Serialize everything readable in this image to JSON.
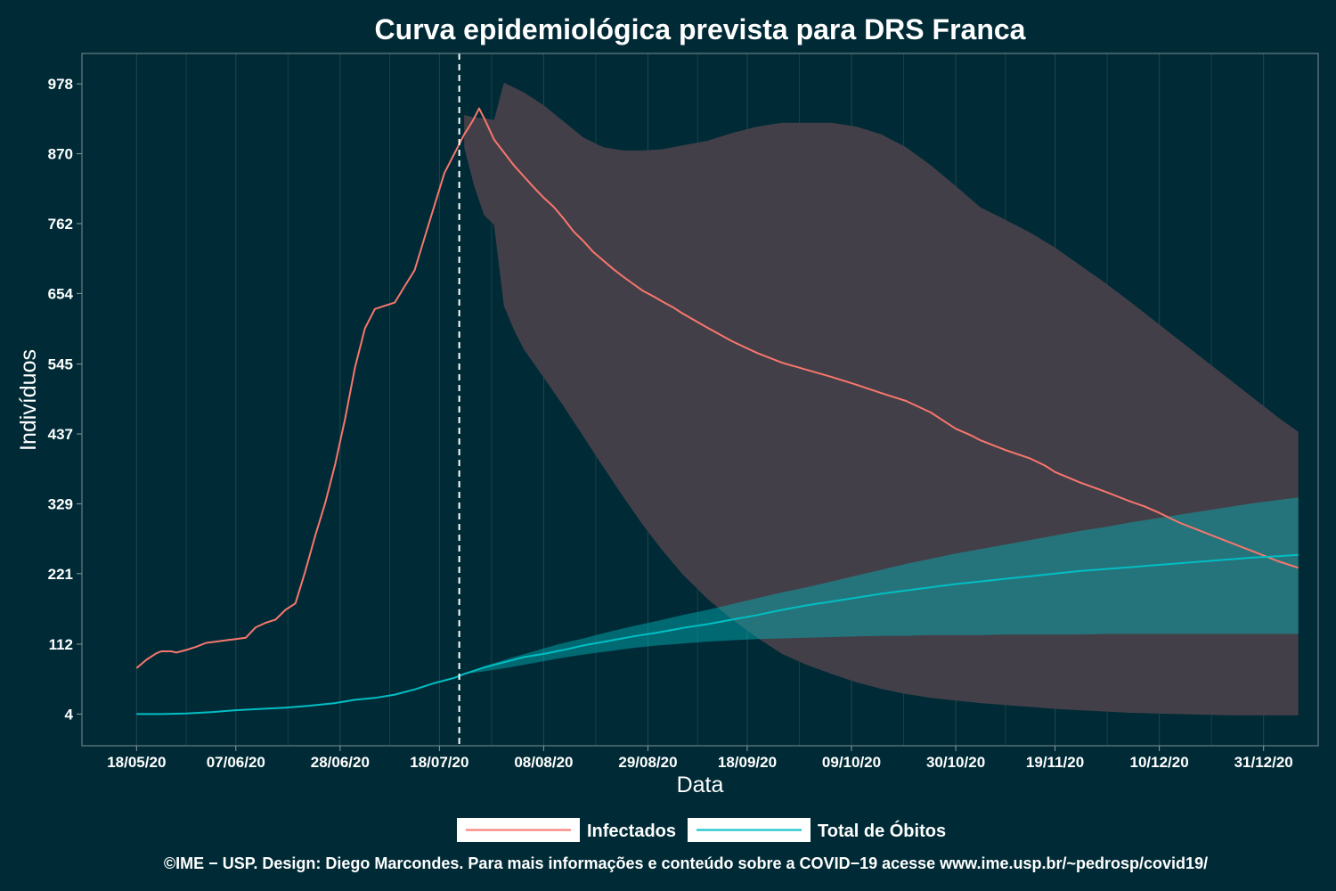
{
  "chart_data": {
    "type": "line",
    "title": "Curva epidemiológica prevista para DRS Franca",
    "xlabel": "Data",
    "ylabel": "Indivíduos",
    "x_tick_labels": [
      "18/05/20",
      "07/06/20",
      "28/06/20",
      "18/07/20",
      "08/08/20",
      "29/08/20",
      "18/09/20",
      "09/10/20",
      "30/10/20",
      "19/11/20",
      "10/12/20",
      "31/12/20"
    ],
    "x_tick_days": [
      0,
      20,
      41,
      61,
      82,
      103,
      123,
      144,
      165,
      185,
      206,
      227
    ],
    "y_ticks": [
      4,
      112,
      221,
      329,
      437,
      545,
      654,
      762,
      870,
      978
    ],
    "ylim": [
      -45,
      1025
    ],
    "xlim": [
      -11,
      238
    ],
    "forecast_start_day": 65,
    "grid": true,
    "legend_position": "bottom",
    "series": [
      {
        "name": "Infectados",
        "color": "#f8766d",
        "points": [
          [
            0,
            75
          ],
          [
            2,
            88
          ],
          [
            4,
            98
          ],
          [
            5,
            101
          ],
          [
            7,
            101
          ],
          [
            8,
            99
          ],
          [
            10,
            103
          ],
          [
            12,
            108
          ],
          [
            14,
            114
          ],
          [
            16,
            116
          ],
          [
            18,
            118
          ],
          [
            20,
            120
          ],
          [
            22,
            122
          ],
          [
            24,
            138
          ],
          [
            26,
            145
          ],
          [
            28,
            150
          ],
          [
            30,
            165
          ],
          [
            32,
            175
          ],
          [
            34,
            225
          ],
          [
            36,
            280
          ],
          [
            38,
            330
          ],
          [
            40,
            390
          ],
          [
            42,
            460
          ],
          [
            44,
            540
          ],
          [
            46,
            600
          ],
          [
            48,
            630
          ],
          [
            50,
            635
          ],
          [
            52,
            640
          ],
          [
            54,
            665
          ],
          [
            56,
            690
          ],
          [
            58,
            740
          ],
          [
            60,
            790
          ],
          [
            62,
            840
          ],
          [
            64,
            870
          ],
          [
            66,
            900
          ],
          [
            67,
            912
          ],
          [
            68,
            925
          ],
          [
            69,
            940
          ],
          [
            70,
            925
          ],
          [
            72,
            892
          ],
          [
            74,
            872
          ],
          [
            76,
            852
          ],
          [
            78,
            835
          ],
          [
            80,
            818
          ],
          [
            82,
            802
          ],
          [
            84,
            788
          ],
          [
            86,
            770
          ],
          [
            88,
            750
          ],
          [
            90,
            735
          ],
          [
            92,
            718
          ],
          [
            94,
            705
          ],
          [
            96,
            692
          ],
          [
            98,
            680
          ],
          [
            100,
            669
          ],
          [
            102,
            658
          ],
          [
            104,
            650
          ],
          [
            106,
            641
          ],
          [
            108,
            633
          ],
          [
            110,
            623
          ],
          [
            115,
            601
          ],
          [
            120,
            580
          ],
          [
            125,
            562
          ],
          [
            130,
            547
          ],
          [
            135,
            536
          ],
          [
            140,
            525
          ],
          [
            145,
            513
          ],
          [
            150,
            500
          ],
          [
            155,
            488
          ],
          [
            160,
            470
          ],
          [
            163,
            455
          ],
          [
            165,
            445
          ],
          [
            168,
            435
          ],
          [
            170,
            427
          ],
          [
            175,
            412
          ],
          [
            180,
            399
          ],
          [
            183,
            388
          ],
          [
            185,
            378
          ],
          [
            190,
            362
          ],
          [
            195,
            348
          ],
          [
            200,
            333
          ],
          [
            203,
            325
          ],
          [
            206,
            315
          ],
          [
            210,
            300
          ],
          [
            215,
            285
          ],
          [
            220,
            270
          ],
          [
            225,
            255
          ],
          [
            230,
            240
          ],
          [
            234,
            230
          ]
        ]
      },
      {
        "name": "Total de Óbitos",
        "color": "#00bfc4",
        "points": [
          [
            0,
            4
          ],
          [
            5,
            4
          ],
          [
            10,
            5
          ],
          [
            15,
            7
          ],
          [
            20,
            10
          ],
          [
            25,
            12
          ],
          [
            30,
            14
          ],
          [
            35,
            17
          ],
          [
            40,
            21
          ],
          [
            44,
            26
          ],
          [
            48,
            29
          ],
          [
            52,
            34
          ],
          [
            56,
            42
          ],
          [
            60,
            52
          ],
          [
            64,
            60
          ],
          [
            66,
            66
          ],
          [
            70,
            76
          ],
          [
            74,
            84
          ],
          [
            78,
            92
          ],
          [
            82,
            97
          ],
          [
            86,
            103
          ],
          [
            90,
            110
          ],
          [
            95,
            117
          ],
          [
            100,
            124
          ],
          [
            105,
            130
          ],
          [
            110,
            137
          ],
          [
            115,
            143
          ],
          [
            120,
            150
          ],
          [
            125,
            157
          ],
          [
            130,
            165
          ],
          [
            135,
            172
          ],
          [
            140,
            178
          ],
          [
            145,
            184
          ],
          [
            150,
            190
          ],
          [
            155,
            195
          ],
          [
            160,
            200
          ],
          [
            165,
            205
          ],
          [
            170,
            209
          ],
          [
            175,
            213
          ],
          [
            180,
            217
          ],
          [
            185,
            221
          ],
          [
            190,
            225
          ],
          [
            195,
            228
          ],
          [
            200,
            231
          ],
          [
            205,
            234
          ],
          [
            210,
            237
          ],
          [
            215,
            240
          ],
          [
            220,
            243
          ],
          [
            225,
            246
          ],
          [
            230,
            248
          ],
          [
            234,
            250
          ]
        ]
      }
    ],
    "bands": [
      {
        "name": "Infectados",
        "fill": "#433f48",
        "upper": [
          [
            66,
            930
          ],
          [
            68,
            926
          ],
          [
            70,
            925
          ],
          [
            72,
            922
          ],
          [
            74,
            980
          ],
          [
            78,
            965
          ],
          [
            82,
            945
          ],
          [
            86,
            920
          ],
          [
            90,
            895
          ],
          [
            94,
            880
          ],
          [
            98,
            875
          ],
          [
            102,
            875
          ],
          [
            106,
            877
          ],
          [
            110,
            883
          ],
          [
            115,
            890
          ],
          [
            120,
            902
          ],
          [
            125,
            912
          ],
          [
            130,
            918
          ],
          [
            135,
            918
          ],
          [
            140,
            918
          ],
          [
            145,
            912
          ],
          [
            150,
            900
          ],
          [
            155,
            880
          ],
          [
            160,
            852
          ],
          [
            165,
            820
          ],
          [
            170,
            787
          ],
          [
            175,
            768
          ],
          [
            180,
            748
          ],
          [
            185,
            725
          ],
          [
            190,
            698
          ],
          [
            195,
            671
          ],
          [
            200,
            642
          ],
          [
            205,
            612
          ],
          [
            210,
            582
          ],
          [
            215,
            552
          ],
          [
            220,
            522
          ],
          [
            225,
            492
          ],
          [
            230,
            462
          ],
          [
            234,
            440
          ]
        ],
        "lower": [
          [
            66,
            880
          ],
          [
            68,
            820
          ],
          [
            70,
            775
          ],
          [
            72,
            760
          ],
          [
            74,
            635
          ],
          [
            76,
            598
          ],
          [
            78,
            568
          ],
          [
            82,
            524
          ],
          [
            86,
            480
          ],
          [
            90,
            433
          ],
          [
            94,
            386
          ],
          [
            98,
            340
          ],
          [
            102,
            296
          ],
          [
            106,
            256
          ],
          [
            110,
            220
          ],
          [
            115,
            182
          ],
          [
            120,
            150
          ],
          [
            125,
            122
          ],
          [
            130,
            97
          ],
          [
            135,
            80
          ],
          [
            140,
            66
          ],
          [
            145,
            53
          ],
          [
            150,
            43
          ],
          [
            155,
            35
          ],
          [
            160,
            29
          ],
          [
            165,
            25
          ],
          [
            170,
            21
          ],
          [
            175,
            18
          ],
          [
            180,
            15
          ],
          [
            185,
            12
          ],
          [
            190,
            10
          ],
          [
            195,
            8
          ],
          [
            200,
            6
          ],
          [
            205,
            5
          ],
          [
            210,
            4
          ],
          [
            215,
            3
          ],
          [
            220,
            2
          ],
          [
            225,
            2
          ],
          [
            230,
            2
          ],
          [
            234,
            2
          ]
        ]
      },
      {
        "name": "Total de Óbitos",
        "fill": "#00bfc4",
        "upper": [
          [
            66,
            66
          ],
          [
            70,
            78
          ],
          [
            75,
            90
          ],
          [
            80,
            101
          ],
          [
            85,
            112
          ],
          [
            90,
            121
          ],
          [
            95,
            131
          ],
          [
            100,
            140
          ],
          [
            105,
            148
          ],
          [
            110,
            157
          ],
          [
            115,
            165
          ],
          [
            120,
            174
          ],
          [
            125,
            183
          ],
          [
            130,
            192
          ],
          [
            135,
            200
          ],
          [
            140,
            209
          ],
          [
            145,
            218
          ],
          [
            150,
            227
          ],
          [
            155,
            236
          ],
          [
            160,
            244
          ],
          [
            165,
            252
          ],
          [
            170,
            259
          ],
          [
            175,
            266
          ],
          [
            180,
            273
          ],
          [
            185,
            280
          ],
          [
            190,
            287
          ],
          [
            195,
            293
          ],
          [
            200,
            300
          ],
          [
            205,
            306
          ],
          [
            210,
            312
          ],
          [
            215,
            318
          ],
          [
            220,
            324
          ],
          [
            225,
            330
          ],
          [
            230,
            335
          ],
          [
            234,
            339
          ]
        ],
        "lower": [
          [
            66,
            66
          ],
          [
            70,
            70
          ],
          [
            75,
            76
          ],
          [
            80,
            83
          ],
          [
            85,
            90
          ],
          [
            90,
            96
          ],
          [
            95,
            101
          ],
          [
            100,
            106
          ],
          [
            105,
            110
          ],
          [
            110,
            113
          ],
          [
            115,
            116
          ],
          [
            120,
            118
          ],
          [
            125,
            120
          ],
          [
            130,
            121
          ],
          [
            135,
            122
          ],
          [
            140,
            123
          ],
          [
            145,
            124
          ],
          [
            150,
            125
          ],
          [
            155,
            125
          ],
          [
            160,
            126
          ],
          [
            165,
            126
          ],
          [
            170,
            126
          ],
          [
            175,
            127
          ],
          [
            180,
            127
          ],
          [
            185,
            127
          ],
          [
            190,
            127
          ],
          [
            195,
            128
          ],
          [
            200,
            128
          ],
          [
            205,
            128
          ],
          [
            210,
            128
          ],
          [
            215,
            128
          ],
          [
            220,
            128
          ],
          [
            225,
            128
          ],
          [
            230,
            128
          ],
          [
            234,
            128
          ]
        ]
      }
    ]
  },
  "legend": {
    "items": [
      {
        "label": "Infectados",
        "color": "#f8766d"
      },
      {
        "label": "Total de Óbitos",
        "color": "#00bfc4"
      }
    ]
  },
  "caption": "©IME − USP. Design: Diego Marcondes. Para mais informações e conteúdo sobre a COVID−19 acesse www.ime.usp.br/~pedrosp/covid19/"
}
